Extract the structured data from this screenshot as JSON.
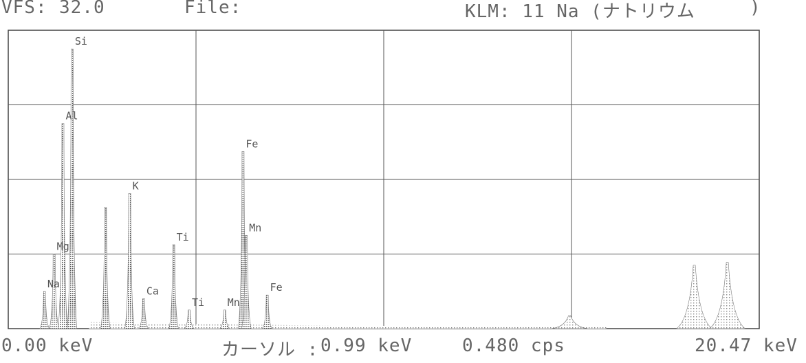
{
  "header": {
    "vfs_label": "VFS:",
    "vfs_value": "32.0",
    "file_label": "File:",
    "klm_label": "KLM: 11 Na (ナトリウム",
    "klm_close": ")"
  },
  "footer": {
    "start": "0.00 keV",
    "cursor_label": "カーソル :",
    "cursor_value": "0.99 keV",
    "rate": "0.480 cps",
    "end": "20.47 keV"
  },
  "chart_data": {
    "type": "bar",
    "xlabel": "",
    "ylabel": "",
    "xlim": [
      0.0,
      20.47
    ],
    "ylim": [
      0,
      32.0
    ],
    "grid": true,
    "peaks": [
      {
        "element": "Na",
        "x": 0.99,
        "y": 4.0,
        "label": "Na"
      },
      {
        "element": "Mg",
        "x": 1.25,
        "y": 8.0,
        "label": "Mg"
      },
      {
        "element": "Al",
        "x": 1.49,
        "y": 22.0,
        "label": "Al"
      },
      {
        "element": "Si",
        "x": 1.74,
        "y": 30.0,
        "label": "Si"
      },
      {
        "element": "",
        "x": 2.65,
        "y": 13.0,
        "label": ""
      },
      {
        "element": "K",
        "x": 3.31,
        "y": 14.5,
        "label": "K"
      },
      {
        "element": "Ca",
        "x": 3.69,
        "y": 3.2,
        "label": "Ca"
      },
      {
        "element": "Ti",
        "x": 4.51,
        "y": 9.0,
        "label": "Ti"
      },
      {
        "element": "Ti",
        "x": 4.93,
        "y": 2.0,
        "label": "Ti"
      },
      {
        "element": "Mn",
        "x": 5.9,
        "y": 2.0,
        "label": "Mn"
      },
      {
        "element": "Fe",
        "x": 6.4,
        "y": 19.0,
        "label": "Fe"
      },
      {
        "element": "Mn",
        "x": 6.49,
        "y": 10.0,
        "label": "Mn"
      },
      {
        "element": "Fe",
        "x": 7.06,
        "y": 3.6,
        "label": "Fe"
      },
      {
        "element": "",
        "x": 15.3,
        "y": 1.4,
        "label": ""
      },
      {
        "element": "",
        "x": 18.7,
        "y": 6.8,
        "label": ""
      },
      {
        "element": "",
        "x": 19.6,
        "y": 7.1,
        "label": ""
      }
    ]
  }
}
